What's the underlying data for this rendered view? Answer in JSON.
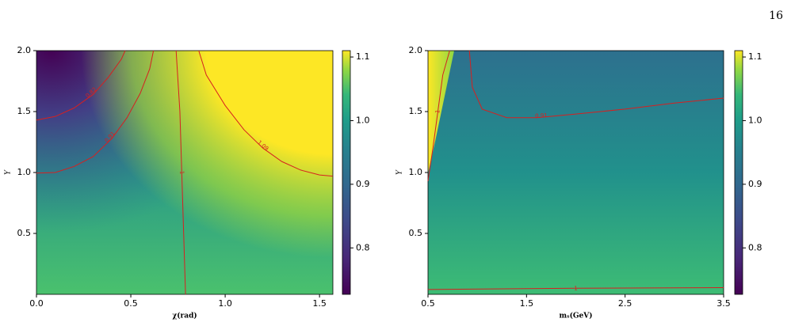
{
  "page_number": "16",
  "chart_data": [
    {
      "type": "heatmap",
      "xlabel": "χ(rad)",
      "ylabel": "Y",
      "xlim": [
        0,
        1.5708
      ],
      "xticks": [
        {
          "value": 0,
          "label": "0.0"
        },
        0.5,
        {
          "value": 1,
          "label": "1.0"
        },
        1.5
      ],
      "ylim": [
        0,
        2
      ],
      "yticks": [
        0.5,
        {
          "value": 1,
          "label": "1.0"
        },
        1.5,
        {
          "value": 2,
          "label": "2.0"
        }
      ],
      "colorbar": {
        "lim": [
          0.727,
          1.11
        ],
        "ticks": [
          0.8,
          0.9,
          {
            "value": 1,
            "label": "1.0"
          },
          1.1
        ]
      },
      "contour_color": "#d62020",
      "contours": [
        {
          "level": 0.82,
          "x": [
            0,
            0.1,
            0.2,
            0.3,
            0.38,
            0.45,
            0.47
          ],
          "y": [
            1.43,
            1.46,
            1.53,
            1.64,
            1.78,
            1.93,
            2.0
          ]
        },
        {
          "level": 0.91,
          "x": [
            0,
            0.1,
            0.2,
            0.3,
            0.4,
            0.48,
            0.55,
            0.6,
            0.62
          ],
          "y": [
            0.995,
            1.0,
            1.05,
            1.13,
            1.28,
            1.45,
            1.65,
            1.85,
            2.0
          ]
        },
        {
          "level": 1,
          "x": [
            0.79,
            0.78,
            0.77,
            0.76,
            0.74
          ],
          "y": [
            0,
            0.5,
            1.0,
            1.5,
            2.0
          ]
        },
        {
          "level": 1.09,
          "x": [
            0.86,
            0.9,
            1.0,
            1.1,
            1.2,
            1.3,
            1.4,
            1.5,
            1.57
          ],
          "y": [
            2.0,
            1.8,
            1.55,
            1.35,
            1.2,
            1.09,
            1.02,
            0.98,
            0.97
          ]
        }
      ]
    },
    {
      "type": "heatmap",
      "xlabel": "mₛ(GeV)",
      "ylabel": "Y",
      "xlim": [
        0.5,
        3.5
      ],
      "xticks": [
        0.5,
        1.5,
        2.5,
        3.5
      ],
      "ylim": [
        0,
        2
      ],
      "yticks": [
        0.5,
        {
          "value": 1,
          "label": "1.0"
        },
        1.5,
        {
          "value": 2,
          "label": "2.0"
        }
      ],
      "colorbar": {
        "lim": [
          0.727,
          1.11
        ],
        "ticks": [
          0.8,
          0.9,
          {
            "value": 1,
            "label": "1.0"
          },
          1.1
        ]
      },
      "contour_color": "#d62020",
      "contours": [
        {
          "level": 1,
          "x": [
            0.5,
            0.55,
            0.6,
            0.65,
            0.72
          ],
          "y": [
            0.93,
            1.2,
            1.5,
            1.8,
            2.0
          ]
        },
        {
          "level": 0.91,
          "x": [
            0.92,
            0.95,
            1.05,
            1.3,
            1.6,
            2.0,
            2.5,
            3.0,
            3.5
          ],
          "y": [
            2.0,
            1.7,
            1.52,
            1.45,
            1.45,
            1.48,
            1.52,
            1.57,
            1.61
          ]
        },
        {
          "level": 1,
          "x": [
            0.5,
            2.0,
            3.5
          ],
          "y": [
            0.04,
            0.05,
            0.055
          ]
        }
      ]
    }
  ]
}
